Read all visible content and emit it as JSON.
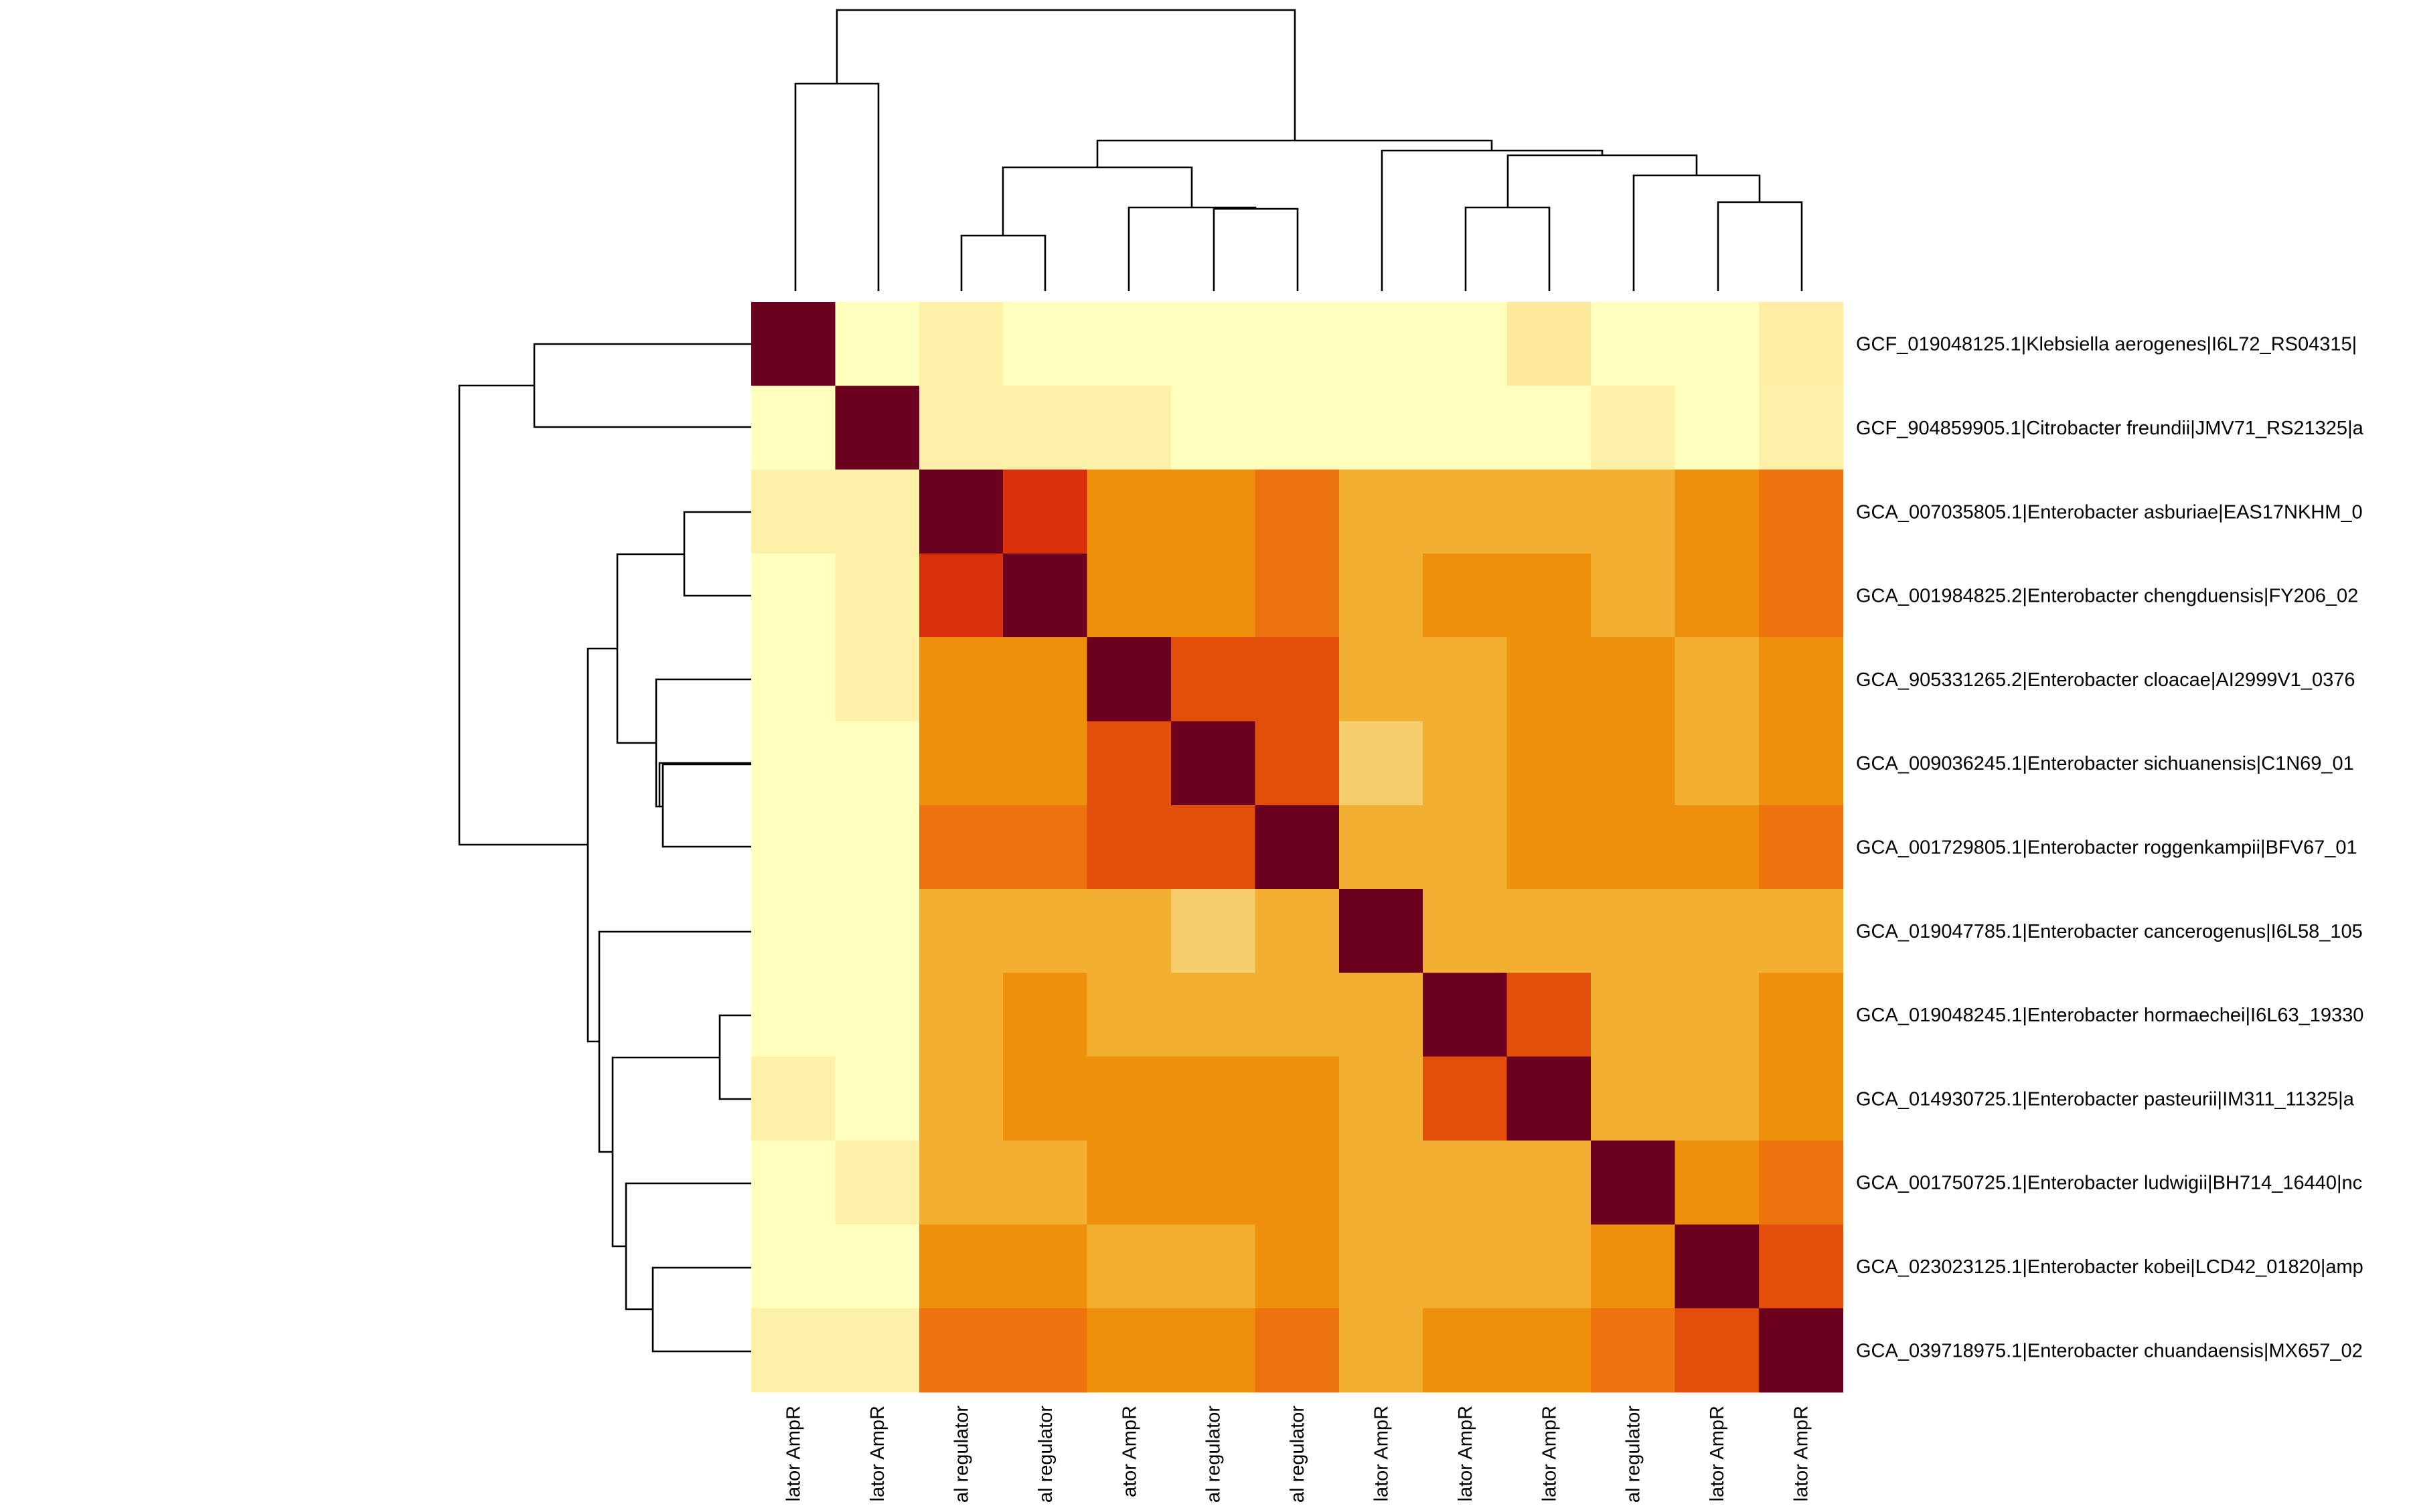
{
  "chart_data": {
    "type": "heatmap",
    "row_labels": [
      "GCF_019048125.1|Klebsiella aerogenes|I6L72_RS04315|",
      "GCF_904859905.1|Citrobacter freundii|JMV71_RS21325|a",
      "GCA_007035805.1|Enterobacter asburiae|EAS17NKHM_0",
      "GCA_001984825.2|Enterobacter chengduensis|FY206_02",
      "GCA_905331265.2|Enterobacter cloacae|AI2999V1_0376",
      "GCA_009036245.1|Enterobacter sichuanensis|C1N69_01",
      "GCA_001729805.1|Enterobacter roggenkampii|BFV67_01",
      "GCA_019047785.1|Enterobacter cancerogenus|I6L58_105",
      "GCA_019048245.1|Enterobacter hormaechei|I6L63_19330",
      "GCA_014930725.1|Enterobacter pasteurii|IM311_11325|a",
      "GCA_001750725.1|Enterobacter ludwigii|BH714_16440|nc",
      "GCA_023023125.1|Enterobacter kobei|LCD42_01820|amp",
      "GCA_039718975.1|Enterobacter chuandaensis|MX657_02"
    ],
    "col_labels": [
      "lator AmpR",
      "lator AmpR",
      "al regulator",
      "al regulator",
      "ator AmpR",
      "al regulator",
      "al regulator",
      "lator AmpR",
      "lator AmpR",
      "lator AmpR",
      "al regulator",
      "lator AmpR",
      "lator AmpR"
    ],
    "values": [
      [
        1.0,
        0.0,
        0.1,
        0.0,
        0.0,
        0.0,
        0.0,
        0.0,
        0.0,
        0.15,
        0.0,
        0.0,
        0.12
      ],
      [
        0.0,
        1.0,
        0.1,
        0.1,
        0.1,
        0.0,
        0.0,
        0.0,
        0.0,
        0.0,
        0.1,
        0.0,
        0.1
      ],
      [
        0.1,
        0.1,
        1.0,
        0.8,
        0.5,
        0.5,
        0.6,
        0.45,
        0.45,
        0.45,
        0.45,
        0.5,
        0.6
      ],
      [
        0.0,
        0.1,
        0.8,
        1.0,
        0.5,
        0.5,
        0.6,
        0.45,
        0.5,
        0.5,
        0.45,
        0.5,
        0.6
      ],
      [
        0.0,
        0.1,
        0.5,
        0.5,
        1.0,
        0.7,
        0.7,
        0.45,
        0.45,
        0.5,
        0.5,
        0.45,
        0.5
      ],
      [
        0.0,
        0.0,
        0.5,
        0.5,
        0.7,
        1.0,
        0.7,
        0.35,
        0.45,
        0.5,
        0.5,
        0.45,
        0.5
      ],
      [
        0.0,
        0.0,
        0.6,
        0.6,
        0.7,
        0.7,
        1.0,
        0.45,
        0.45,
        0.5,
        0.5,
        0.5,
        0.6
      ],
      [
        0.0,
        0.0,
        0.45,
        0.45,
        0.45,
        0.35,
        0.45,
        1.0,
        0.45,
        0.45,
        0.45,
        0.45,
        0.45
      ],
      [
        0.0,
        0.0,
        0.45,
        0.5,
        0.45,
        0.45,
        0.45,
        0.45,
        1.0,
        0.7,
        0.45,
        0.45,
        0.5
      ],
      [
        0.1,
        0.0,
        0.45,
        0.5,
        0.5,
        0.5,
        0.5,
        0.45,
        0.7,
        1.0,
        0.45,
        0.45,
        0.5
      ],
      [
        0.0,
        0.1,
        0.45,
        0.45,
        0.5,
        0.5,
        0.5,
        0.45,
        0.45,
        0.45,
        1.0,
        0.5,
        0.6
      ],
      [
        0.0,
        0.0,
        0.5,
        0.5,
        0.45,
        0.45,
        0.5,
        0.45,
        0.45,
        0.45,
        0.5,
        1.0,
        0.7
      ],
      [
        0.1,
        0.1,
        0.6,
        0.6,
        0.5,
        0.5,
        0.6,
        0.45,
        0.5,
        0.5,
        0.6,
        0.7,
        1.0
      ]
    ],
    "color_scale": {
      "stops": [
        [
          0.0,
          "#FFFFBE"
        ],
        [
          0.1,
          "#FFF0A8"
        ],
        [
          0.35,
          "#F6CE6B"
        ],
        [
          0.45,
          "#F2AF31"
        ],
        [
          0.5,
          "#EF900D"
        ],
        [
          0.6,
          "#EC730E"
        ],
        [
          0.7,
          "#E34E0B"
        ],
        [
          0.8,
          "#D9300B"
        ],
        [
          1.0,
          "#6B001F"
        ]
      ]
    },
    "row_dendrogram": true,
    "col_dendrogram": true,
    "grid": false,
    "legend": false
  }
}
